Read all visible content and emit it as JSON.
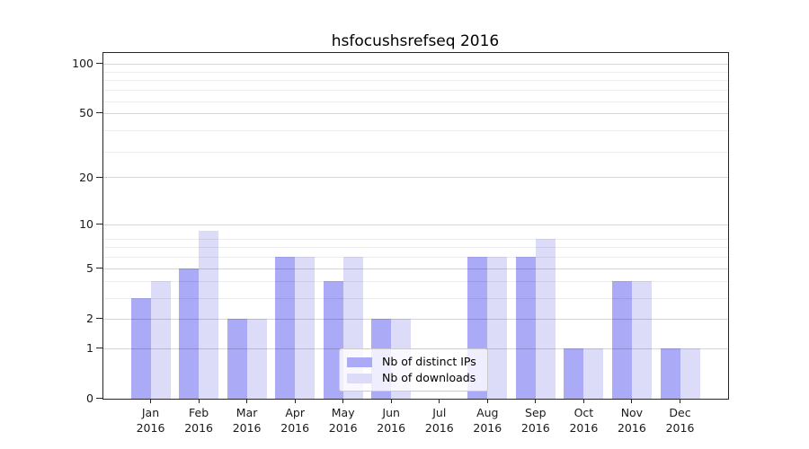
{
  "chart_data": {
    "type": "bar",
    "title": "hsfocushsrefseq 2016",
    "x_months": [
      "Jan",
      "Feb",
      "Mar",
      "Apr",
      "May",
      "Jun",
      "Jul",
      "Aug",
      "Sep",
      "Oct",
      "Nov",
      "Dec"
    ],
    "x_year": "2016",
    "series": [
      {
        "name": "Nb of distinct IPs",
        "color": "#aaaaf7",
        "values": [
          3,
          5,
          2,
          6,
          4,
          2,
          0,
          6,
          6,
          1,
          4,
          1
        ]
      },
      {
        "name": "Nb of downloads",
        "color": "#dcdcf9",
        "values": [
          4,
          9,
          2,
          6,
          6,
          2,
          0,
          6,
          8,
          1,
          4,
          1
        ]
      }
    ],
    "yscale": "log1p",
    "ylim": [
      0,
      116
    ],
    "y_ticks": [
      0,
      1,
      2,
      5,
      10,
      20,
      50,
      100
    ],
    "y_minor_gridlines": [
      3,
      4,
      6,
      7,
      8,
      29,
      39,
      59,
      69,
      79,
      89
    ],
    "grid": true,
    "legend_position": "lower center",
    "colors": {
      "bar_ips": "#aaaaf7",
      "bar_downloads": "#dcdcf9",
      "major_grid": "rgba(0,0,0,0.16)",
      "minor_grid": "rgba(0,0,0,0.07)",
      "axis": "#262626",
      "text": "#000000",
      "legend_border": "#cccccc"
    }
  }
}
